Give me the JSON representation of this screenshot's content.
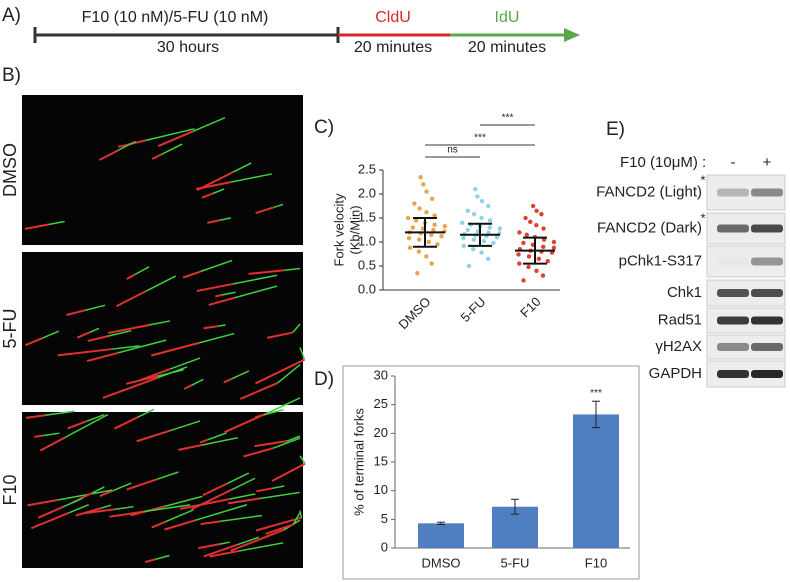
{
  "panel_labels": [
    "A)",
    "B)",
    "C)",
    "D)",
    "E)"
  ],
  "timeline": {
    "treatment": "F10 (10 nM)/5-FU (10 nM)",
    "treatment_time": "30 hours",
    "pulse1": "CldU",
    "pulse1_time": "20 minutes",
    "pulse2": "IdU",
    "pulse2_time": "20 minutes"
  },
  "fiber_images": [
    "DMSO",
    "5-FU",
    "F10"
  ],
  "chart_data": [
    {
      "type": "dotplot",
      "y_label": [
        "Fork velocity",
        "(Kb/Min)"
      ],
      "categories": [
        "DMSO",
        "5-FU",
        "F10"
      ],
      "colors": [
        "#e8a54a",
        "#8fd3e8",
        "#d9432f"
      ],
      "points": [
        [
          0.35,
          0.55,
          0.7,
          0.8,
          0.88,
          0.95,
          1.0,
          1.05,
          1.08,
          1.12,
          1.15,
          1.18,
          1.2,
          1.22,
          1.25,
          1.28,
          1.3,
          1.33,
          1.36,
          1.4,
          1.45,
          1.5,
          1.55,
          1.62,
          1.7,
          1.8,
          1.9,
          2.05,
          2.2,
          2.35
        ],
        [
          0.5,
          0.65,
          0.78,
          0.85,
          0.92,
          0.98,
          1.02,
          1.05,
          1.08,
          1.1,
          1.12,
          1.14,
          1.16,
          1.18,
          1.2,
          1.22,
          1.25,
          1.28,
          1.3,
          1.33,
          1.36,
          1.4,
          1.45,
          1.5,
          1.58,
          1.65,
          1.75,
          1.85,
          1.95,
          2.1
        ],
        [
          0.2,
          0.3,
          0.4,
          0.48,
          0.55,
          0.6,
          0.65,
          0.7,
          0.74,
          0.78,
          0.8,
          0.82,
          0.85,
          0.88,
          0.9,
          0.94,
          0.98,
          1.0,
          1.05,
          1.1,
          1.15,
          1.2,
          1.28,
          1.35,
          1.42,
          1.5,
          1.58,
          1.65,
          1.75
        ]
      ],
      "means": [
        1.2,
        1.15,
        0.82
      ],
      "errors": [
        0.3,
        0.23,
        0.27
      ],
      "significance": [
        "ns",
        "***",
        "***"
      ],
      "ylim": [
        0,
        2.5
      ],
      "yticks": [
        {
          "value": 0,
          "label": "0.0"
        },
        0.5,
        {
          "value": 1,
          "label": "1.0"
        },
        1.5,
        {
          "value": 2,
          "label": "2.0"
        },
        2.5
      ]
    },
    {
      "type": "bar",
      "y_label": "% of terminal forks",
      "categories": [
        "DMSO",
        "5-FU",
        "F10"
      ],
      "values": [
        4.3,
        7.2,
        23.3
      ],
      "errors": [
        0.2,
        1.3,
        2.3
      ],
      "color": "#4f7fc0",
      "annotation": "***",
      "ylim": [
        0,
        30
      ],
      "yticks": [
        0,
        5,
        10,
        15,
        20,
        25,
        30
      ]
    }
  ],
  "blot": {
    "condition": "F10 (10μM) :",
    "lanes": [
      "-",
      "+"
    ],
    "rows": [
      {
        "label": "FANCD2 (Light)",
        "mark": "*"
      },
      {
        "label": "FANCD2 (Dark)",
        "mark": "*"
      },
      {
        "label": "pChk1-S317"
      },
      {
        "label": "Chk1"
      },
      {
        "label": "Rad51"
      },
      {
        "label": "γH2AX"
      },
      {
        "label": "GAPDH"
      }
    ]
  }
}
